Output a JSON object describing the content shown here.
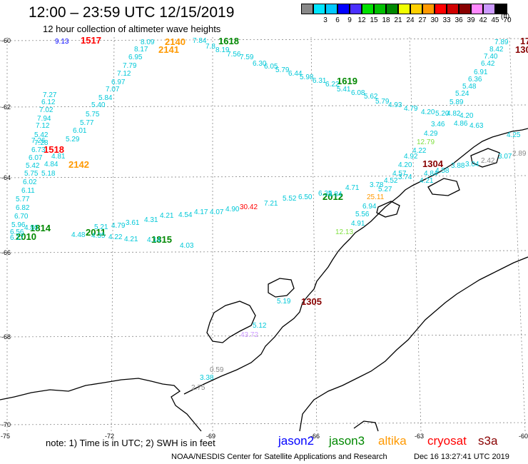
{
  "header": {
    "title": "12:00 – 23:59 UTC 12/15/2019",
    "subtitle": "12 hour collection of altimeter wave heights"
  },
  "legend": {
    "unit": "(ft)",
    "swatches": [
      {
        "label": "",
        "color": "#888888"
      },
      {
        "label": "3",
        "color": "#00e5ff"
      },
      {
        "label": "6",
        "color": "#00c8ff"
      },
      {
        "label": "9",
        "color": "#0000ff"
      },
      {
        "label": "12",
        "color": "#4a30ff"
      },
      {
        "label": "15",
        "color": "#00e000"
      },
      {
        "label": "18",
        "color": "#00c000"
      },
      {
        "label": "21",
        "color": "#008800"
      },
      {
        "label": "24",
        "color": "#f0ff00"
      },
      {
        "label": "27",
        "color": "#ffd000"
      },
      {
        "label": "30",
        "color": "#ff9900"
      },
      {
        "label": "33",
        "color": "#ff0000"
      },
      {
        "label": "36",
        "color": "#d00000"
      },
      {
        "label": "39",
        "color": "#880000"
      },
      {
        "label": "42",
        "color": "#ff88ff"
      },
      {
        "label": "45",
        "color": "#cc99ff"
      },
      {
        "label": "70",
        "color": "#000000"
      }
    ]
  },
  "axes": {
    "lat_labels": [
      "-60",
      "-62",
      "-64",
      "-66",
      "-68",
      "-70"
    ],
    "lon_labels": [
      "-75",
      "-72",
      "-69",
      "-66",
      "-63",
      "-60"
    ]
  },
  "footer": {
    "note": "note: 1) Time is in UTC; 2) SWH is in feet",
    "satellites": [
      {
        "name": "jason2",
        "color": "#0000ff"
      },
      {
        "name": "jason3",
        "color": "#008800"
      },
      {
        "name": "altika",
        "color": "#ff9900"
      },
      {
        "name": "cryosat",
        "color": "#ff0000"
      },
      {
        "name": "s3a",
        "color": "#880000"
      }
    ],
    "credit": "NOAA/NESDIS Center for Satellite Applications and Research",
    "timestamp": "Dec 16 13:27:41 UTC 2019"
  },
  "passes": [
    {
      "label": "1517",
      "color": "#ff0000"
    },
    {
      "label": "2140",
      "color": "#ff9900"
    },
    {
      "label": "2141",
      "color": "#ff9900"
    },
    {
      "label": "1618",
      "color": "#008800"
    },
    {
      "label": "1619",
      "color": "#008800"
    },
    {
      "label": "1518",
      "color": "#ff0000"
    },
    {
      "label": "2142",
      "color": "#ff9900"
    },
    {
      "label": "1304",
      "color": "#880000"
    },
    {
      "label": "2012",
      "color": "#008800"
    },
    {
      "label": "1814",
      "color": "#008800"
    },
    {
      "label": "2011",
      "color": "#008800"
    },
    {
      "label": "2010",
      "color": "#008800"
    },
    {
      "label": "1815",
      "color": "#008800"
    },
    {
      "label": "1305",
      "color": "#880000"
    },
    {
      "label": "17",
      "color": "#880000"
    },
    {
      "label": "130",
      "color": "#880000"
    }
  ],
  "values": [
    {
      "t": "9.13",
      "c": "#0000ff"
    },
    {
      "t": "8.09",
      "c": "#00c8d8"
    },
    {
      "t": "7.84",
      "c": "#00c8d8"
    },
    {
      "t": "7.89",
      "c": "#00c8d8"
    },
    {
      "t": "8.42",
      "c": "#00c8d8"
    },
    {
      "t": "8.17",
      "c": "#00c8d8"
    },
    {
      "t": "7.8",
      "c": "#00c8d8"
    },
    {
      "t": "8.19",
      "c": "#00c8d8"
    },
    {
      "t": "7.40",
      "c": "#00c8d8"
    },
    {
      "t": "6.95",
      "c": "#00c8d8"
    },
    {
      "t": "7.56",
      "c": "#00c8d8"
    },
    {
      "t": "7.59",
      "c": "#00c8d8"
    },
    {
      "t": "6.42",
      "c": "#00c8d8"
    },
    {
      "t": "7.79",
      "c": "#00c8d8"
    },
    {
      "t": "6.30",
      "c": "#00c8d8"
    },
    {
      "t": "6.05",
      "c": "#00c8d8"
    },
    {
      "t": "6.91",
      "c": "#00c8d8"
    },
    {
      "t": "7.12",
      "c": "#00c8d8"
    },
    {
      "t": "5.79",
      "c": "#00c8d8"
    },
    {
      "t": "6.44",
      "c": "#00c8d8"
    },
    {
      "t": "6.36",
      "c": "#00c8d8"
    },
    {
      "t": "6.97",
      "c": "#00c8d8"
    },
    {
      "t": "5.98",
      "c": "#00c8d8"
    },
    {
      "t": "6.31",
      "c": "#00c8d8"
    },
    {
      "t": "5.48",
      "c": "#00c8d8"
    },
    {
      "t": "7.07",
      "c": "#00c8d8"
    },
    {
      "t": "6.22",
      "c": "#00c8d8"
    },
    {
      "t": "5.41",
      "c": "#00c8d8"
    },
    {
      "t": "5.24",
      "c": "#00c8d8"
    },
    {
      "t": "7.27",
      "c": "#00c8d8"
    },
    {
      "t": "5.84",
      "c": "#00c8d8"
    },
    {
      "t": "6.08",
      "c": "#00c8d8"
    },
    {
      "t": "5.62",
      "c": "#00c8d8"
    },
    {
      "t": "6.12",
      "c": "#00c8d8"
    },
    {
      "t": "5.40",
      "c": "#00c8d8"
    },
    {
      "t": "5.79",
      "c": "#00c8d8"
    },
    {
      "t": "5.89",
      "c": "#00c8d8"
    },
    {
      "t": "7.02",
      "c": "#00c8d8"
    },
    {
      "t": "4.93",
      "c": "#00c8d8"
    },
    {
      "t": "4.79",
      "c": "#00c8d8"
    },
    {
      "t": "4.20",
      "c": "#00c8d8"
    },
    {
      "t": "5.75",
      "c": "#00c8d8"
    },
    {
      "t": "5.20",
      "c": "#00c8d8"
    },
    {
      "t": "4.82",
      "c": "#00c8d8"
    },
    {
      "t": "4.20",
      "c": "#00c8d8"
    },
    {
      "t": "7.94",
      "c": "#00c8d8"
    },
    {
      "t": "5.77",
      "c": "#00c8d8"
    },
    {
      "t": "3.46",
      "c": "#00c8d8"
    },
    {
      "t": "4.86",
      "c": "#00c8d8"
    },
    {
      "t": "4.63",
      "c": "#00c8d8"
    },
    {
      "t": "7.12",
      "c": "#00c8d8"
    },
    {
      "t": "6.01",
      "c": "#00c8d8"
    },
    {
      "t": "4.29",
      "c": "#00c8d8"
    },
    {
      "t": "5.42",
      "c": "#00c8d8"
    },
    {
      "t": "4.25",
      "c": "#00c8d8"
    },
    {
      "t": "7.28",
      "c": "#00c8d8"
    },
    {
      "t": "5.29",
      "c": "#00c8d8"
    },
    {
      "t": "12.79",
      "c": "#80e040"
    },
    {
      "t": "7.26",
      "c": "#00c8d8"
    },
    {
      "t": "4.22",
      "c": "#00c8d8"
    },
    {
      "t": "6.73",
      "c": "#00c8d8"
    },
    {
      "t": "4.81",
      "c": "#00c8d8"
    },
    {
      "t": "4.92",
      "c": "#00c8d8"
    },
    {
      "t": "2.42",
      "c": "#888888"
    },
    {
      "t": "3.07",
      "c": "#00c8d8"
    },
    {
      "t": "2.89",
      "c": "#888888"
    },
    {
      "t": "6.07",
      "c": "#00c8d8"
    },
    {
      "t": "4.20",
      "c": "#00c8d8"
    },
    {
      "t": "3.04",
      "c": "#00c8d8"
    },
    {
      "t": "5.42",
      "c": "#00c8d8"
    },
    {
      "t": "4.84",
      "c": "#00c8d8"
    },
    {
      "t": "3.88",
      "c": "#00c8d8"
    },
    {
      "t": "4.57",
      "c": "#00c8d8"
    },
    {
      "t": "4.84",
      "c": "#00c8d8"
    },
    {
      "t": "4.58",
      "c": "#00c8d8"
    },
    {
      "t": "5.75",
      "c": "#00c8d8"
    },
    {
      "t": "5.18",
      "c": "#00c8d8"
    },
    {
      "t": "4.52",
      "c": "#00c8d8"
    },
    {
      "t": "3.74",
      "c": "#00c8d8"
    },
    {
      "t": "6.02",
      "c": "#00c8d8"
    },
    {
      "t": "4.21",
      "c": "#00c8d8"
    },
    {
      "t": "3.78",
      "c": "#00c8d8"
    },
    {
      "t": "5.27",
      "c": "#00c8d8"
    },
    {
      "t": "6.11",
      "c": "#00c8d8"
    },
    {
      "t": "3.84",
      "c": "#00c8d8"
    },
    {
      "t": "4.71",
      "c": "#00c8d8"
    },
    {
      "t": "6.50",
      "c": "#00c8d8"
    },
    {
      "t": "6.35",
      "c": "#00c8d8"
    },
    {
      "t": "5.52",
      "c": "#00c8d8"
    },
    {
      "t": "25.11",
      "c": "#ff9900"
    },
    {
      "t": "5.77",
      "c": "#00c8d8"
    },
    {
      "t": "30.42",
      "c": "#ff0000"
    },
    {
      "t": "7.21",
      "c": "#00c8d8"
    },
    {
      "t": "6.94",
      "c": "#00c8d8"
    },
    {
      "t": "6.82",
      "c": "#00c8d8"
    },
    {
      "t": "4.07",
      "c": "#00c8d8"
    },
    {
      "t": "4.90",
      "c": "#00c8d8"
    },
    {
      "t": "5.56",
      "c": "#00c8d8"
    },
    {
      "t": "6.70",
      "c": "#00c8d8"
    },
    {
      "t": "4.21",
      "c": "#00c8d8"
    },
    {
      "t": "4.54",
      "c": "#00c8d8"
    },
    {
      "t": "4.17",
      "c": "#00c8d8"
    },
    {
      "t": "4.91",
      "c": "#00c8d8"
    },
    {
      "t": "5.96",
      "c": "#00c8d8"
    },
    {
      "t": "3.61",
      "c": "#00c8d8"
    },
    {
      "t": "4.31",
      "c": "#00c8d8"
    },
    {
      "t": "4.79",
      "c": "#00c8d8"
    },
    {
      "t": "6.56",
      "c": "#00c8d8"
    },
    {
      "t": "4.80",
      "c": "#00c8d8"
    },
    {
      "t": "5.21",
      "c": "#00c8d8"
    },
    {
      "t": "12.13",
      "c": "#80e040"
    },
    {
      "t": "6.17",
      "c": "#00c8d8"
    },
    {
      "t": "4.22",
      "c": "#00c8d8"
    },
    {
      "t": "4.35",
      "c": "#00c8d8"
    },
    {
      "t": "4.21",
      "c": "#00c8d8"
    },
    {
      "t": "4.14",
      "c": "#00c8d8"
    },
    {
      "t": "4.03",
      "c": "#00c8d8"
    },
    {
      "t": "5.19",
      "c": "#00c8d8"
    },
    {
      "t": "5.12",
      "c": "#00c8d8"
    },
    {
      "t": "43.72",
      "c": "#cc99ff"
    },
    {
      "t": "0.59",
      "c": "#888888"
    },
    {
      "t": "3.38",
      "c": "#00c8d8"
    },
    {
      "t": "2.75",
      "c": "#888888"
    },
    {
      "t": "4.48",
      "c": "#00c8d8"
    }
  ]
}
